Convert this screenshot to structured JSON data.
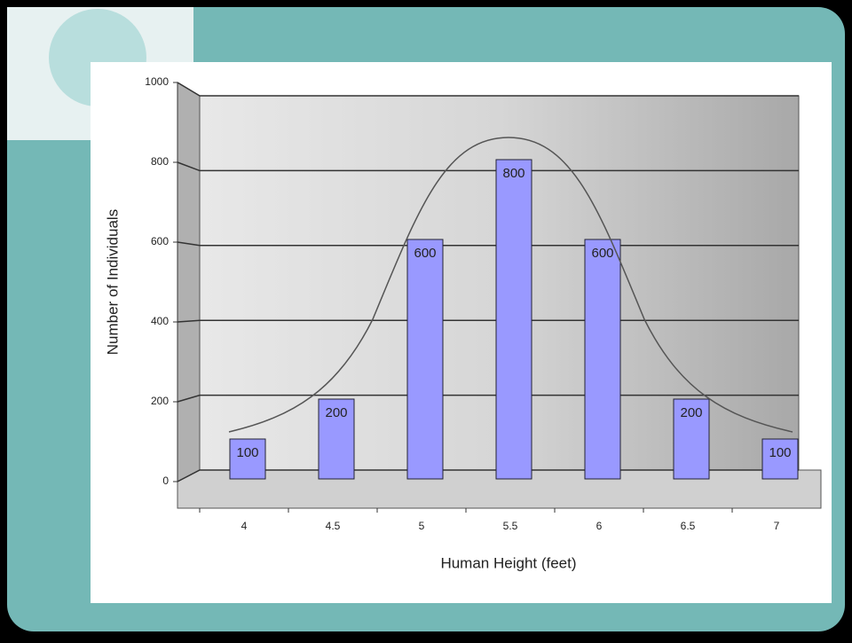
{
  "chart_data": {
    "type": "bar",
    "x_label": "Human Height (feet)",
    "y_label": "Number of Individuals",
    "categories": [
      "4",
      "4.5",
      "5",
      "5.5",
      "6",
      "6.5",
      "7"
    ],
    "values": [
      100,
      200,
      600,
      800,
      600,
      200,
      100
    ],
    "color": "#9999ff",
    "ylim": [
      0,
      1000
    ],
    "yticks": [
      0,
      200,
      400,
      600,
      800,
      1000
    ],
    "grid": true
  }
}
